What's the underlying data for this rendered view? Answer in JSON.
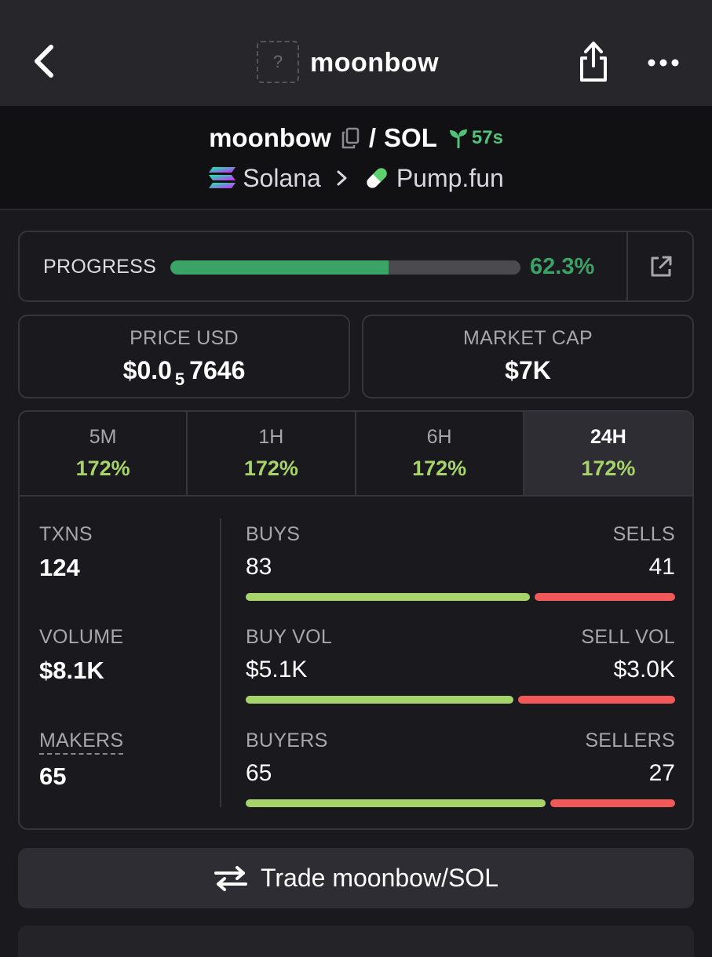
{
  "header": {
    "title": "moonbow",
    "logo_placeholder": "?"
  },
  "pair": {
    "base": "moonbow",
    "separator": "/",
    "quote": "SOL",
    "age": "57s",
    "chain": "Solana",
    "dex": "Pump.fun"
  },
  "progress": {
    "label": "PROGRESS",
    "value_text": "62.3%",
    "fraction": 0.623
  },
  "price": {
    "label": "PRICE USD",
    "prefix": "$0.0",
    "zeros": "5",
    "digits": "7646"
  },
  "market_cap": {
    "label": "MARKET CAP",
    "value": "$7K"
  },
  "timeframes": [
    {
      "label": "5M",
      "change": "172%"
    },
    {
      "label": "1H",
      "change": "172%"
    },
    {
      "label": "6H",
      "change": "172%"
    },
    {
      "label": "24H",
      "change": "172%"
    }
  ],
  "metrics": {
    "txns": {
      "label": "TXNS",
      "value": "124"
    },
    "volume": {
      "label": "VOLUME",
      "value": "$8.1K"
    },
    "makers": {
      "label": "MAKERS",
      "value": "65"
    }
  },
  "splits": {
    "txns": {
      "left_label": "BUYS",
      "right_label": "SELLS",
      "left_value": "83",
      "right_value": "41",
      "left_amount": 83,
      "right_amount": 41
    },
    "volume": {
      "left_label": "BUY VOL",
      "right_label": "SELL VOL",
      "left_value": "$5.1K",
      "right_value": "$3.0K",
      "left_amount": 5.1,
      "right_amount": 3.0
    },
    "makers": {
      "left_label": "BUYERS",
      "right_label": "SELLERS",
      "left_value": "65",
      "right_value": "27",
      "left_amount": 65,
      "right_amount": 27
    }
  },
  "trade_button": {
    "label": "Trade moonbow/SOL"
  },
  "colors": {
    "positive": "#a6d36a",
    "negative": "#f15959",
    "progress": "#3aa365",
    "age": "#52c27a"
  }
}
